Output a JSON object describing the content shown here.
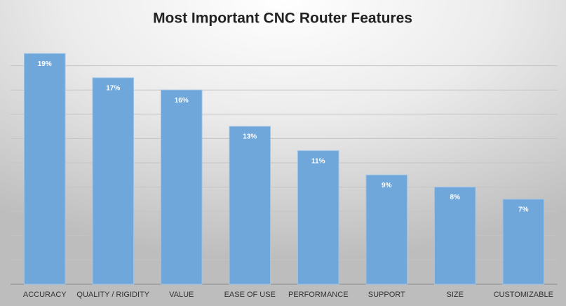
{
  "chart_data": {
    "type": "bar",
    "title": "Most Important CNC Router Features",
    "categories": [
      "ACCURACY",
      "QUALITY / RIGIDITY",
      "VALUE",
      "EASE OF USE",
      "PERFORMANCE",
      "SUPPORT",
      "SIZE",
      "CUSTOMIZABLE"
    ],
    "values": [
      19,
      17,
      16,
      13,
      11,
      9,
      8,
      7
    ],
    "value_labels": [
      "19%",
      "17%",
      "16%",
      "13%",
      "11%",
      "9%",
      "8%",
      "7%"
    ],
    "color": "#6fa7da",
    "ylim": [
      0,
      20
    ],
    "yticks": [
      0,
      2,
      4,
      6,
      8,
      10,
      12,
      14,
      16,
      18
    ],
    "grid": true
  }
}
